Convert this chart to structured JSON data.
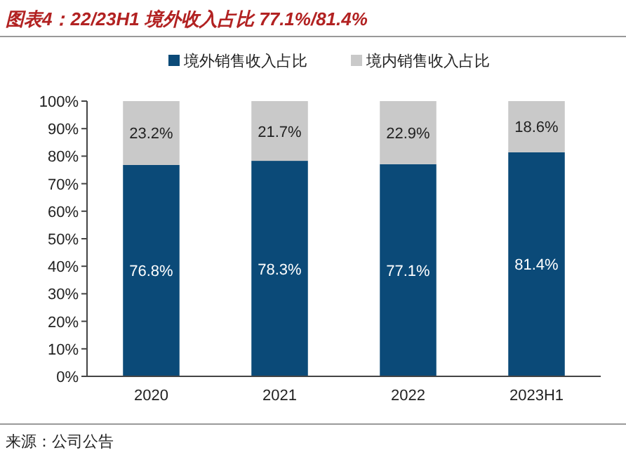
{
  "chart_data": {
    "type": "bar",
    "title": "图表4：22/23H1 境外收入占比 77.1%/81.4%",
    "categories": [
      "2020",
      "2021",
      "2022",
      "2023H1"
    ],
    "stacked": true,
    "series": [
      {
        "name": "境外销售收入占比",
        "color": "#0b4a78",
        "values": [
          76.8,
          78.3,
          77.1,
          81.4
        ],
        "value_labels": [
          "76.8%",
          "78.3%",
          "77.1%",
          "81.4%"
        ]
      },
      {
        "name": "境内销售收入占比",
        "color": "#c9c9c9",
        "values": [
          23.2,
          21.7,
          22.9,
          18.6
        ],
        "value_labels": [
          "23.2%",
          "21.7%",
          "22.9%",
          "18.6%"
        ]
      }
    ],
    "ylim": [
      0,
      100
    ],
    "yticks": [
      {
        "value": 0,
        "label": "0%"
      },
      {
        "value": 10,
        "label": "10%"
      },
      {
        "value": 20,
        "label": "20%"
      },
      {
        "value": 30,
        "label": "30%"
      },
      {
        "value": 40,
        "label": "40%"
      },
      {
        "value": 50,
        "label": "50%"
      },
      {
        "value": 60,
        "label": "60%"
      },
      {
        "value": 70,
        "label": "70%"
      },
      {
        "value": 80,
        "label": "80%"
      },
      {
        "value": 90,
        "label": "90%"
      },
      {
        "value": 100,
        "label": "100%"
      }
    ],
    "legend": "top",
    "annotations": [
      "来源：公司公告"
    ]
  }
}
